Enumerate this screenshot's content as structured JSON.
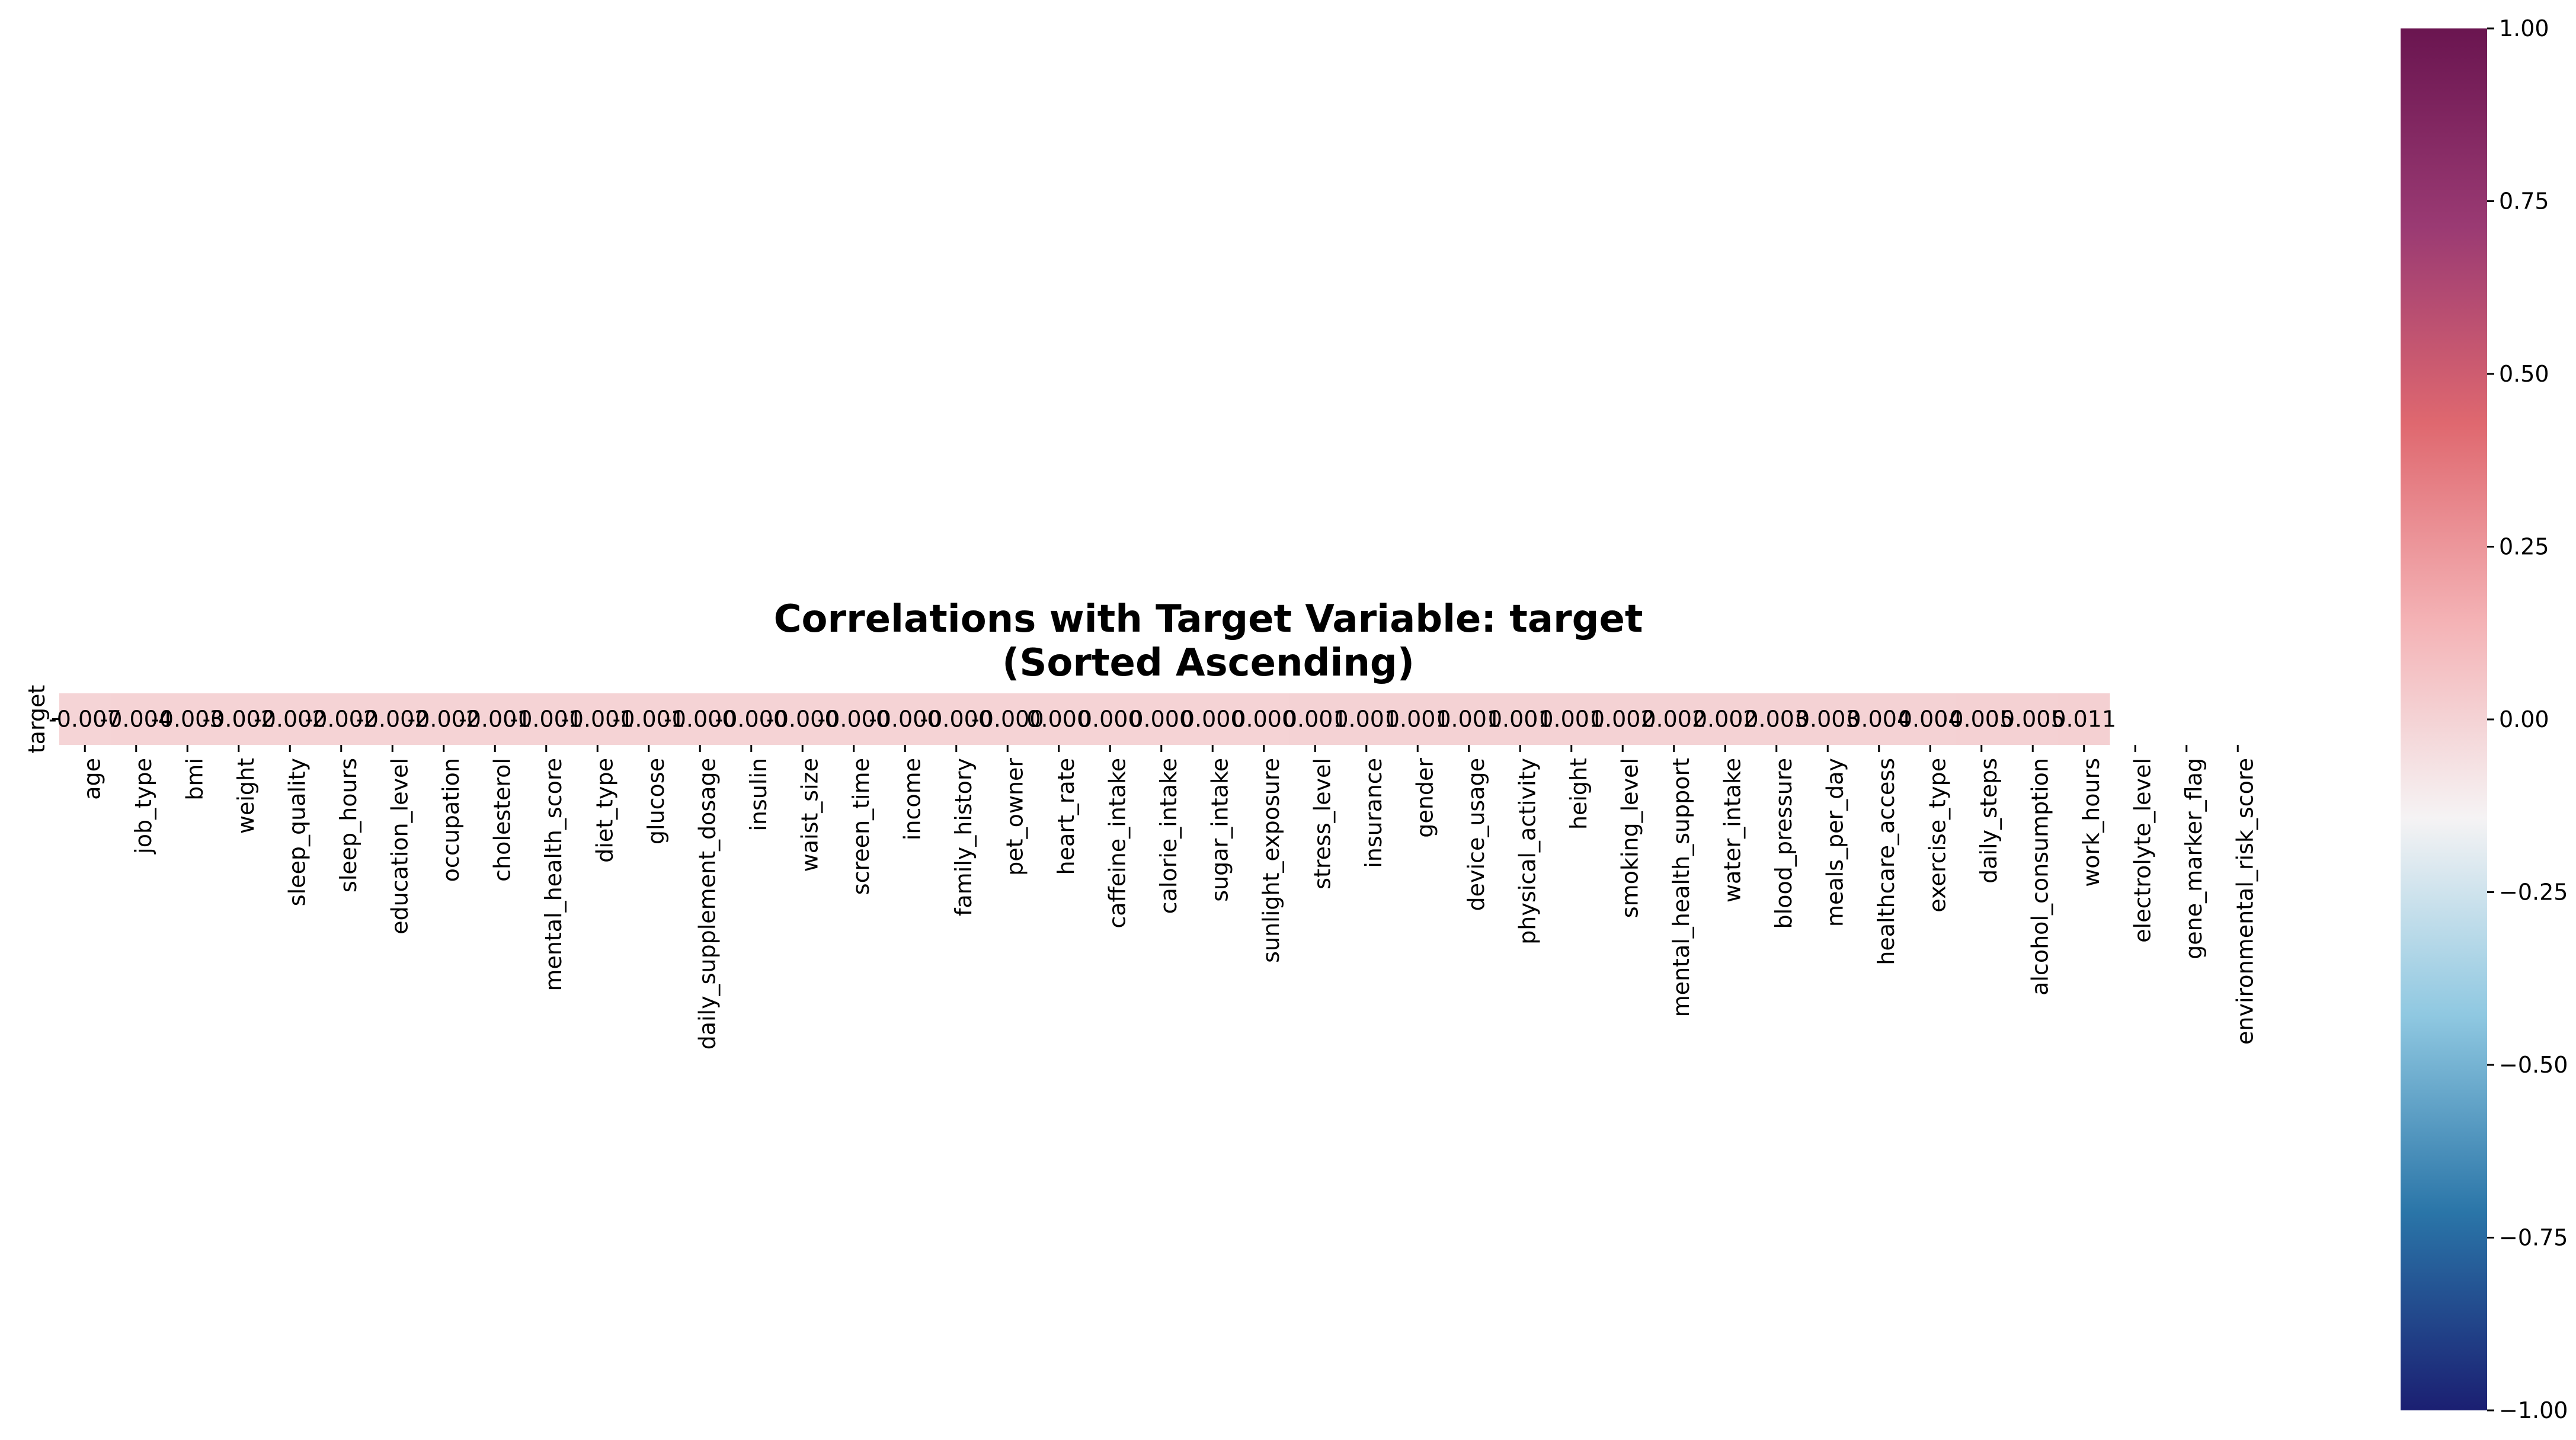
{
  "chart_data": {
    "type": "heatmap",
    "title": [
      "Correlations with Target Variable: target",
      "(Sorted Ascending)"
    ],
    "row_label": "target",
    "categories": [
      "age",
      "job_type",
      "bmi",
      "weight",
      "sleep_quality",
      "sleep_hours",
      "education_level",
      "occupation",
      "cholesterol",
      "mental_health_score",
      "diet_type",
      "glucose",
      "daily_supplement_dosage",
      "insulin",
      "waist_size",
      "screen_time",
      "income",
      "family_history",
      "pet_owner",
      "heart_rate",
      "caffeine_intake",
      "calorie_intake",
      "sugar_intake",
      "sunlight_exposure",
      "stress_level",
      "insurance",
      "gender",
      "device_usage",
      "physical_activity",
      "height",
      "smoking_level",
      "mental_health_support",
      "water_intake",
      "blood_pressure",
      "meals_per_day",
      "healthcare_access",
      "exercise_type",
      "daily_steps",
      "alcohol_consumption",
      "work_hours",
      "electrolyte_level",
      "gene_marker_flag",
      "environmental_risk_score"
    ],
    "values": [
      -0.007,
      -0.004,
      -0.003,
      -0.002,
      -0.002,
      -0.002,
      -0.002,
      -0.002,
      -0.001,
      -0.001,
      -0.001,
      -0.001,
      -0.0,
      -0.0,
      -0.0,
      -0.0,
      -0.0,
      -0.0,
      -0.0,
      0.0,
      0.0,
      0.0,
      0.0,
      0.0,
      0.001,
      0.001,
      0.001,
      0.001,
      0.001,
      0.001,
      0.002,
      0.002,
      0.002,
      0.003,
      0.003,
      0.004,
      0.004,
      0.005,
      0.005,
      0.011,
      null,
      null,
      null
    ],
    "value_labels": [
      "-0.007",
      "-0.004",
      "-0.003",
      "-0.002",
      "-0.002",
      "-0.002",
      "-0.002",
      "-0.002",
      "-0.001",
      "-0.001",
      "-0.001",
      "-0.001",
      "-0.000",
      "-0.000",
      "-0.000",
      "-0.000",
      "-0.000",
      "-0.000",
      "-0.000",
      "0.000",
      "0.000",
      "0.000",
      "0.000",
      "0.000",
      "0.001",
      "0.001",
      "0.001",
      "0.001",
      "0.001",
      "0.001",
      "0.002",
      "0.002",
      "0.002",
      "0.003",
      "0.003",
      "0.004",
      "0.004",
      "0.005",
      "0.005",
      "0.011",
      "",
      "",
      ""
    ],
    "colorbar": {
      "range": [
        -1.0,
        1.0
      ],
      "ticks": [
        "1.00",
        "0.75",
        "0.50",
        "0.25",
        "0.00",
        "−0.25",
        "−0.50",
        "−0.75",
        "−1.00"
      ],
      "colormap": [
        "#1b1f72",
        "#2a75a8",
        "#8fc8e1",
        "#f5f3f4",
        "#f4b2b5",
        "#df686f",
        "#9a3a73",
        "#6a1550"
      ]
    }
  }
}
